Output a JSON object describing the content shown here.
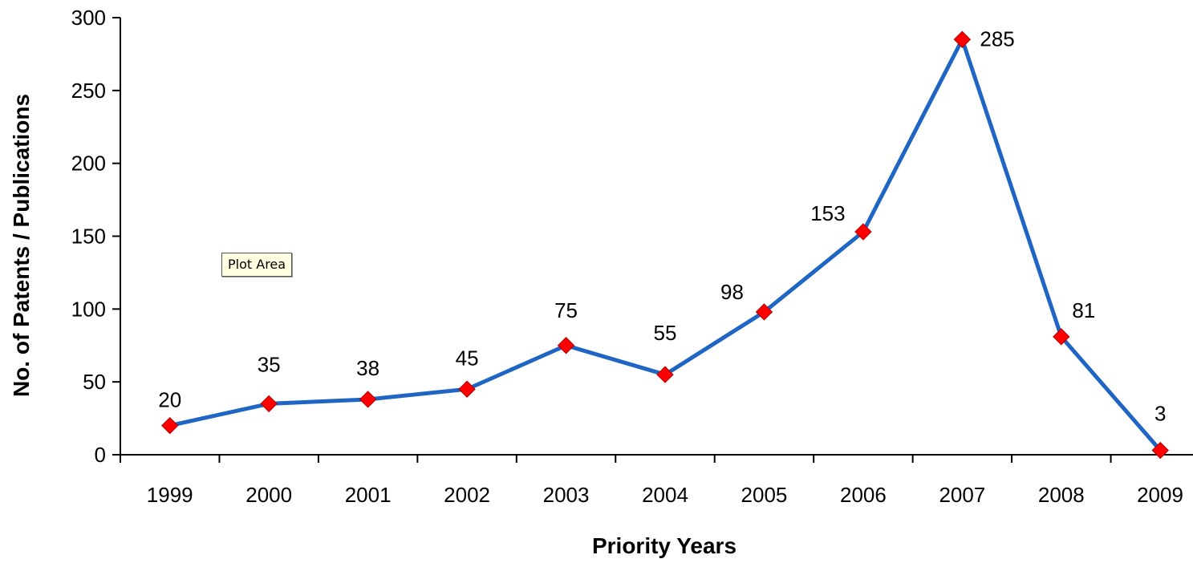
{
  "chart_data": {
    "type": "line",
    "x": [
      "1999",
      "2000",
      "2001",
      "2002",
      "2003",
      "2004",
      "2005",
      "2006",
      "2007",
      "2008",
      "2009"
    ],
    "values": [
      20,
      35,
      38,
      45,
      75,
      55,
      98,
      153,
      285,
      81,
      3
    ],
    "data_labels": [
      "20",
      "35",
      "38",
      "45",
      "75",
      "55",
      "98",
      "153",
      "285",
      "81",
      "3"
    ],
    "xlabel": "Priority Years",
    "ylabel": "No. of Patents / Publications",
    "ylim": [
      0,
      300
    ],
    "yticks": [
      0,
      50,
      100,
      150,
      200,
      250,
      300
    ],
    "grid": false,
    "legend": "none",
    "line_color": "#1f66c4",
    "marker_color": "#ff0000",
    "marker_shape": "diamond"
  },
  "tooltip": {
    "text": "Plot Area"
  }
}
